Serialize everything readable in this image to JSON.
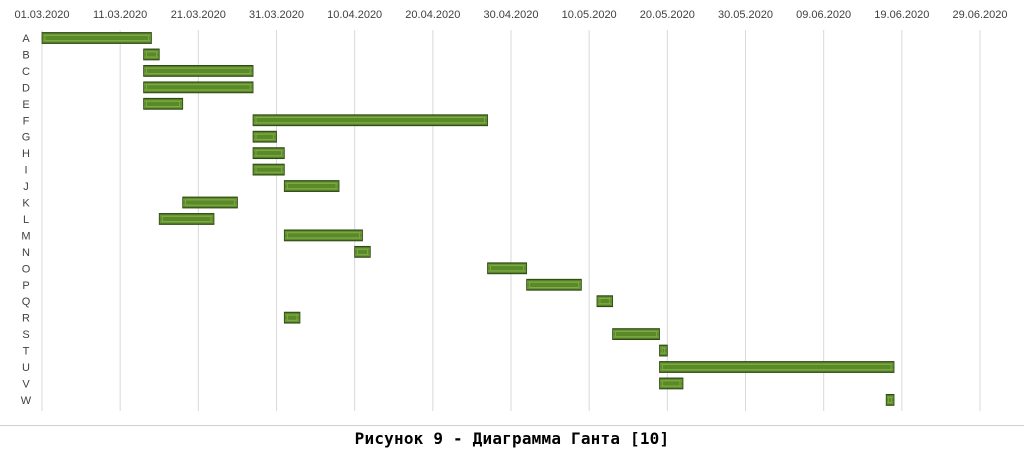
{
  "chart_data": {
    "type": "gantt",
    "x_ticks": [
      "01.03.2020",
      "11.03.2020",
      "21.03.2020",
      "31.03.2020",
      "10.04.2020",
      "20.04.2020",
      "30.04.2020",
      "10.05.2020",
      "20.05.2020",
      "30.05.2020",
      "09.06.2020",
      "19.06.2020",
      "29.06.2020"
    ],
    "x_range": [
      "01.03.2020",
      "29.06.2020"
    ],
    "grid": true,
    "legend": "none",
    "bar_color": "#5a8a28",
    "tasks": [
      {
        "name": "A",
        "start": "01.03.2020",
        "end": "15.03.2020"
      },
      {
        "name": "B",
        "start": "14.03.2020",
        "end": "16.03.2020"
      },
      {
        "name": "C",
        "start": "14.03.2020",
        "end": "28.03.2020"
      },
      {
        "name": "D",
        "start": "14.03.2020",
        "end": "28.03.2020"
      },
      {
        "name": "E",
        "start": "14.03.2020",
        "end": "19.03.2020"
      },
      {
        "name": "F",
        "start": "28.03.2020",
        "end": "27.04.2020"
      },
      {
        "name": "G",
        "start": "28.03.2020",
        "end": "31.03.2020"
      },
      {
        "name": "H",
        "start": "28.03.2020",
        "end": "01.04.2020"
      },
      {
        "name": "I",
        "start": "28.03.2020",
        "end": "01.04.2020"
      },
      {
        "name": "J",
        "start": "01.04.2020",
        "end": "08.04.2020"
      },
      {
        "name": "K",
        "start": "19.03.2020",
        "end": "26.03.2020"
      },
      {
        "name": "L",
        "start": "16.03.2020",
        "end": "23.03.2020"
      },
      {
        "name": "M",
        "start": "01.04.2020",
        "end": "11.04.2020"
      },
      {
        "name": "N",
        "start": "10.04.2020",
        "end": "12.04.2020"
      },
      {
        "name": "O",
        "start": "27.04.2020",
        "end": "02.05.2020"
      },
      {
        "name": "P",
        "start": "02.05.2020",
        "end": "09.05.2020"
      },
      {
        "name": "Q",
        "start": "11.05.2020",
        "end": "13.05.2020"
      },
      {
        "name": "R",
        "start": "01.04.2020",
        "end": "03.04.2020"
      },
      {
        "name": "S",
        "start": "13.05.2020",
        "end": "19.05.2020"
      },
      {
        "name": "T",
        "start": "19.05.2020",
        "end": "20.05.2020"
      },
      {
        "name": "U",
        "start": "19.05.2020",
        "end": "18.06.2020"
      },
      {
        "name": "V",
        "start": "19.05.2020",
        "end": "22.05.2020"
      },
      {
        "name": "W",
        "start": "17.06.2020",
        "end": "18.06.2020"
      }
    ]
  },
  "caption": "Рисунок 9 - Диаграмма Ганта [10]"
}
